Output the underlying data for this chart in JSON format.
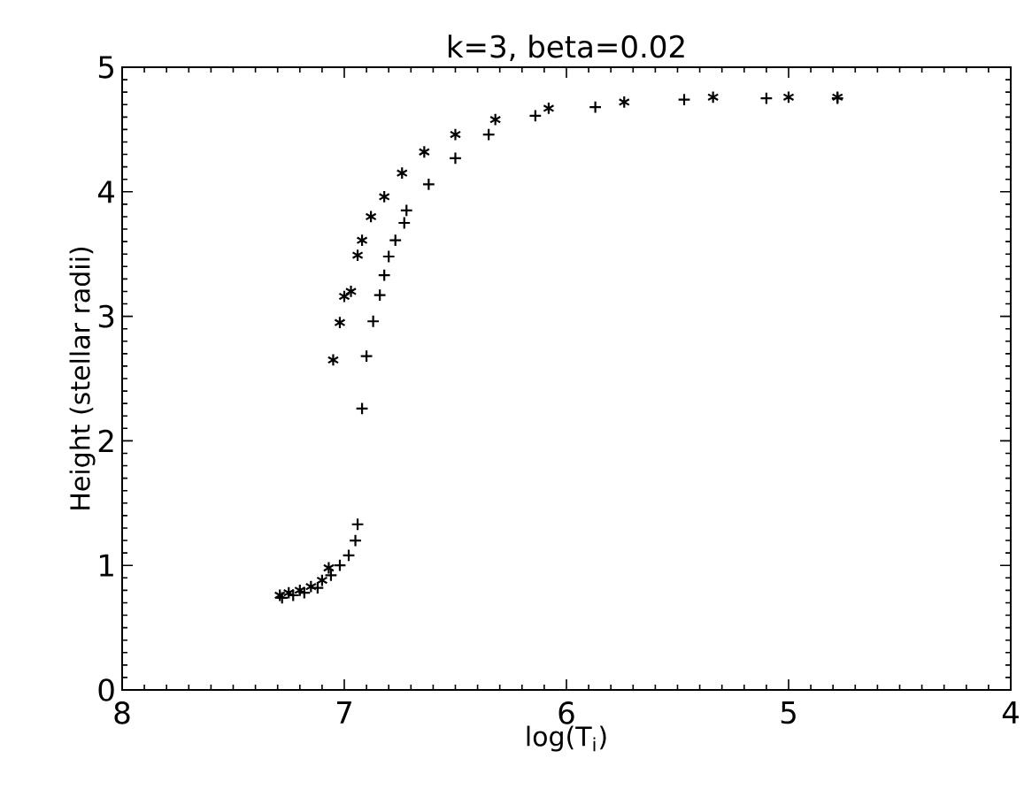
{
  "chart_data": {
    "type": "scatter",
    "title": "k=3, beta=0.02",
    "xlabel": "log(T$_{i}$)",
    "ylabel": "Height (stellar radii)",
    "xlim": [
      8,
      4
    ],
    "ylim": [
      0,
      5
    ],
    "xticks": [
      8,
      7,
      6,
      5,
      4
    ],
    "yticks": [
      0,
      1,
      2,
      3,
      4,
      5
    ],
    "grid": false,
    "series": [
      {
        "color": "#000000",
        "x": [
          7.29,
          7.25,
          7.2,
          7.15,
          7.1,
          7.07,
          7.05,
          7.02,
          7.0,
          6.97,
          6.94,
          6.92,
          6.88,
          6.82,
          6.74,
          6.64,
          6.5,
          6.32,
          6.08,
          5.74,
          5.34,
          5.0,
          4.78
        ],
        "values": [
          0.76,
          0.78,
          0.8,
          0.83,
          0.88,
          0.98,
          2.65,
          2.95,
          3.16,
          3.2,
          3.49,
          3.61,
          3.8,
          3.96,
          4.15,
          4.32,
          4.46,
          4.58,
          4.67,
          4.72,
          4.76,
          4.76,
          4.76
        ]
      },
      {
        "color": "#000000",
        "marker": "cross",
        "x": [
          7.28,
          7.23,
          7.18,
          7.12,
          7.06,
          7.02,
          6.98,
          6.95,
          6.94,
          6.92,
          6.9,
          6.87,
          6.84,
          6.82,
          6.8,
          6.77,
          6.73,
          6.72,
          6.62,
          6.5,
          6.35,
          6.14,
          5.87,
          5.47,
          5.1,
          4.78
        ],
        "values": [
          0.74,
          0.76,
          0.78,
          0.82,
          0.92,
          1.0,
          1.08,
          1.2,
          1.33,
          2.26,
          2.68,
          2.96,
          3.17,
          3.33,
          3.48,
          3.61,
          3.75,
          3.85,
          4.06,
          4.27,
          4.46,
          4.61,
          4.68,
          4.74,
          4.75,
          4.75
        ]
      }
    ]
  }
}
